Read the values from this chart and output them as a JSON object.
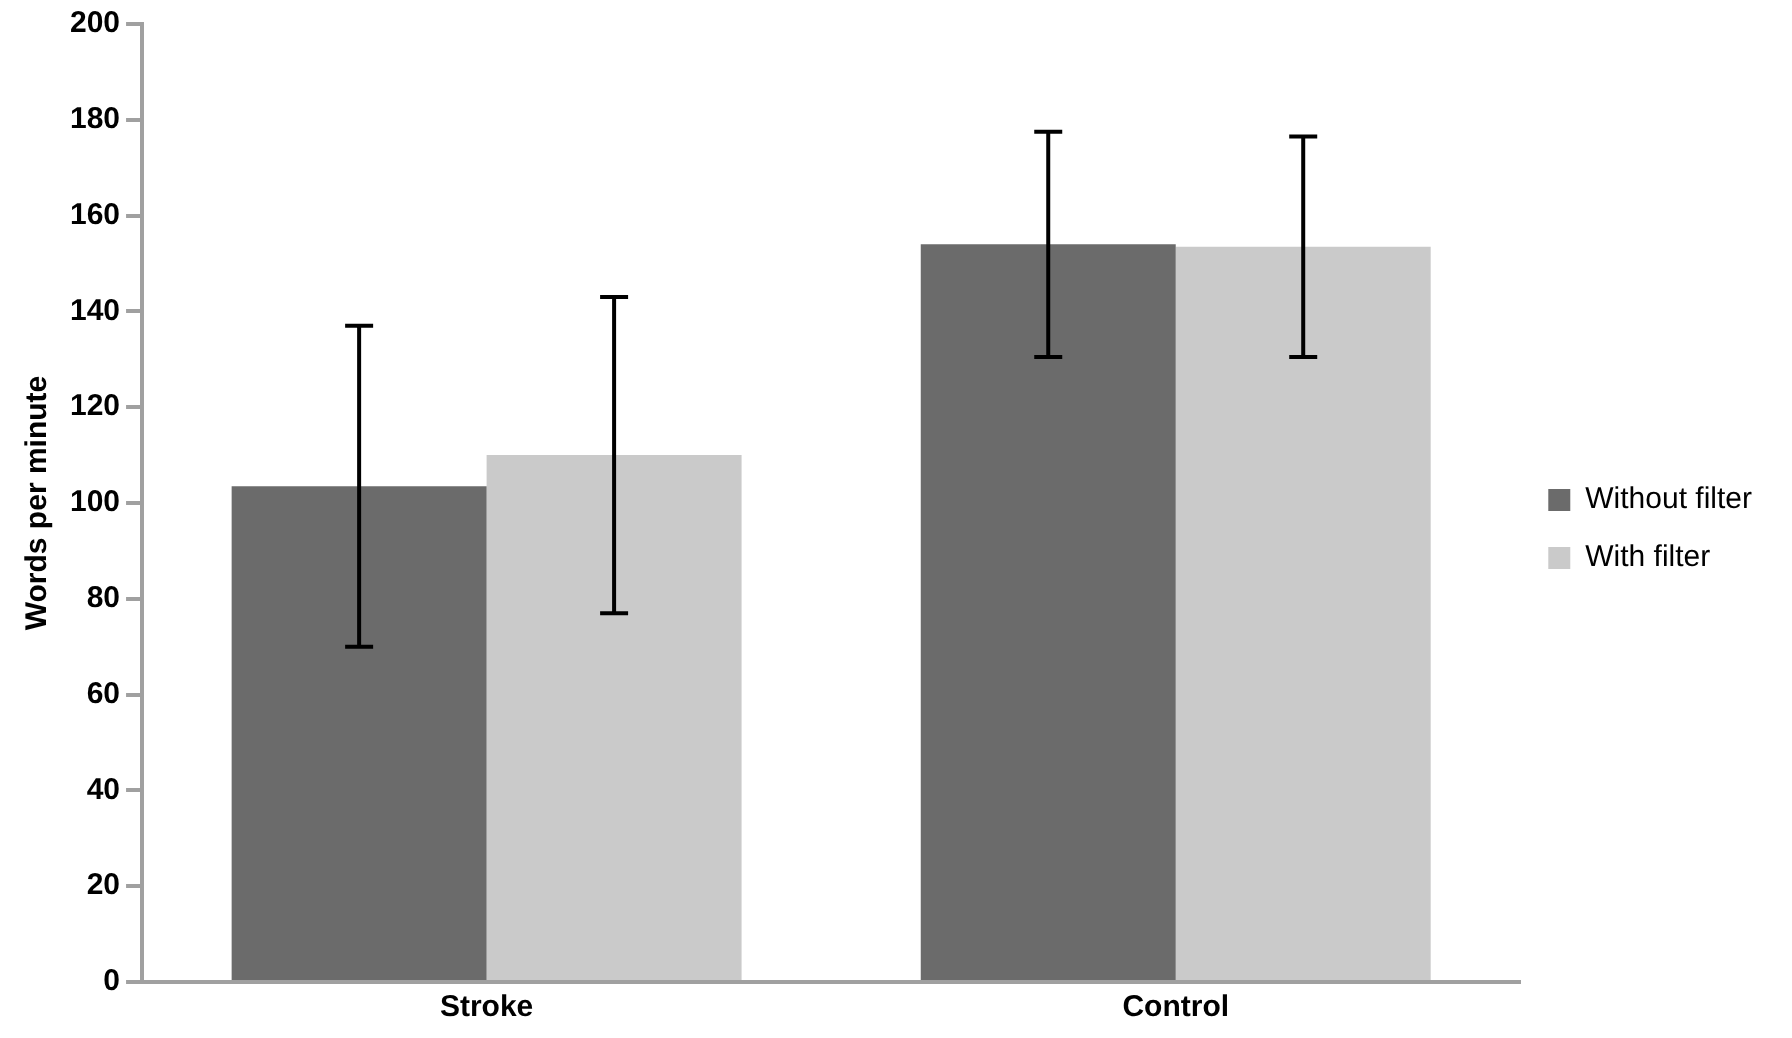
{
  "chart_data": {
    "type": "bar",
    "ylabel": "Words per minute",
    "categories": [
      "Stroke",
      "Control"
    ],
    "series": [
      {
        "name": "Without filter",
        "color": "#6b6b6b",
        "values": [
          103.5,
          154
        ],
        "errors": [
          33.5,
          23.5
        ]
      },
      {
        "name": "With filter",
        "color": "#cacaca",
        "values": [
          110,
          153.5
        ],
        "errors": [
          33,
          23
        ]
      }
    ],
    "ylim": [
      0,
      200
    ],
    "yticks": [
      0,
      20,
      40,
      60,
      80,
      100,
      120,
      140,
      160,
      180,
      200
    ],
    "grid": false,
    "legend": "right"
  }
}
